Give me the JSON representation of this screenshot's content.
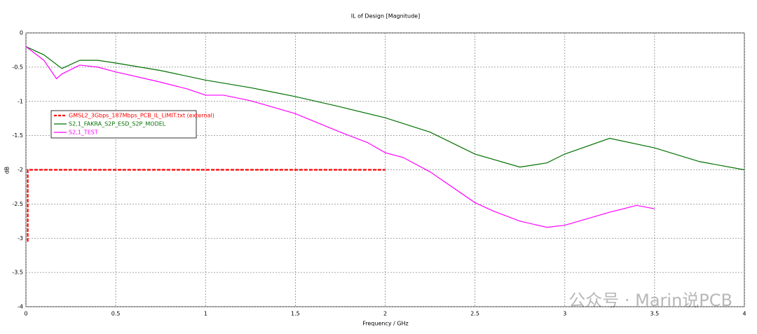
{
  "chart_data": {
    "type": "line",
    "title": "IL of Design [Magnitude]",
    "x_label": "Frequency / GHz",
    "y_label": "dB",
    "xlim": [
      0,
      4
    ],
    "ylim": [
      -4,
      0
    ],
    "xticks": [
      0,
      0.5,
      1,
      1.5,
      2,
      2.5,
      3,
      3.5,
      4
    ],
    "yticks": [
      0,
      -0.5,
      -1,
      -1.5,
      -2,
      -2.5,
      -3,
      -3.5,
      -4
    ],
    "grid": true,
    "legend": "upper left",
    "series": [
      {
        "name": "GMSL2_3Gbps_187Mbps_PCB_IL_LIMIT.txt (external)",
        "color": "#ff0000",
        "dashed": true,
        "x": [
          0.01,
          0.01,
          2
        ],
        "values": [
          -3.05,
          -2,
          -2
        ]
      },
      {
        "name": "S2,1_FAKRA_S2P_ESD_S2P_MODEL",
        "color": "#007000",
        "dashed": false,
        "x": [
          0,
          0.1,
          0.2,
          0.3,
          0.4,
          0.5,
          0.75,
          1,
          1.25,
          1.5,
          1.75,
          2,
          2.25,
          2.5,
          2.75,
          2.9,
          3,
          3.25,
          3.5,
          3.75,
          4
        ],
        "values": [
          -0.2,
          -0.32,
          -0.52,
          -0.4,
          -0.4,
          -0.44,
          -0.55,
          -0.69,
          -0.8,
          -0.93,
          -1.08,
          -1.24,
          -1.45,
          -1.77,
          -1.96,
          -1.9,
          -1.77,
          -1.54,
          -1.68,
          -1.88,
          -2.0
        ]
      },
      {
        "name": "S2,1_TEST",
        "color": "#ff00ff",
        "dashed": false,
        "x": [
          0,
          0.1,
          0.17,
          0.2,
          0.3,
          0.4,
          0.5,
          0.75,
          0.9,
          1,
          1.1,
          1.25,
          1.5,
          1.75,
          1.9,
          2,
          2.1,
          2.25,
          2.5,
          2.6,
          2.75,
          2.9,
          3,
          3.25,
          3.4,
          3.5
        ],
        "values": [
          -0.2,
          -0.4,
          -0.67,
          -0.6,
          -0.47,
          -0.5,
          -0.57,
          -0.72,
          -0.82,
          -0.91,
          -0.91,
          -0.99,
          -1.18,
          -1.45,
          -1.6,
          -1.75,
          -1.82,
          -2.03,
          -2.48,
          -2.6,
          -2.75,
          -2.84,
          -2.81,
          -2.62,
          -2.52,
          -2.57
        ]
      }
    ]
  },
  "watermark": "公众号 · Marin说PCB"
}
